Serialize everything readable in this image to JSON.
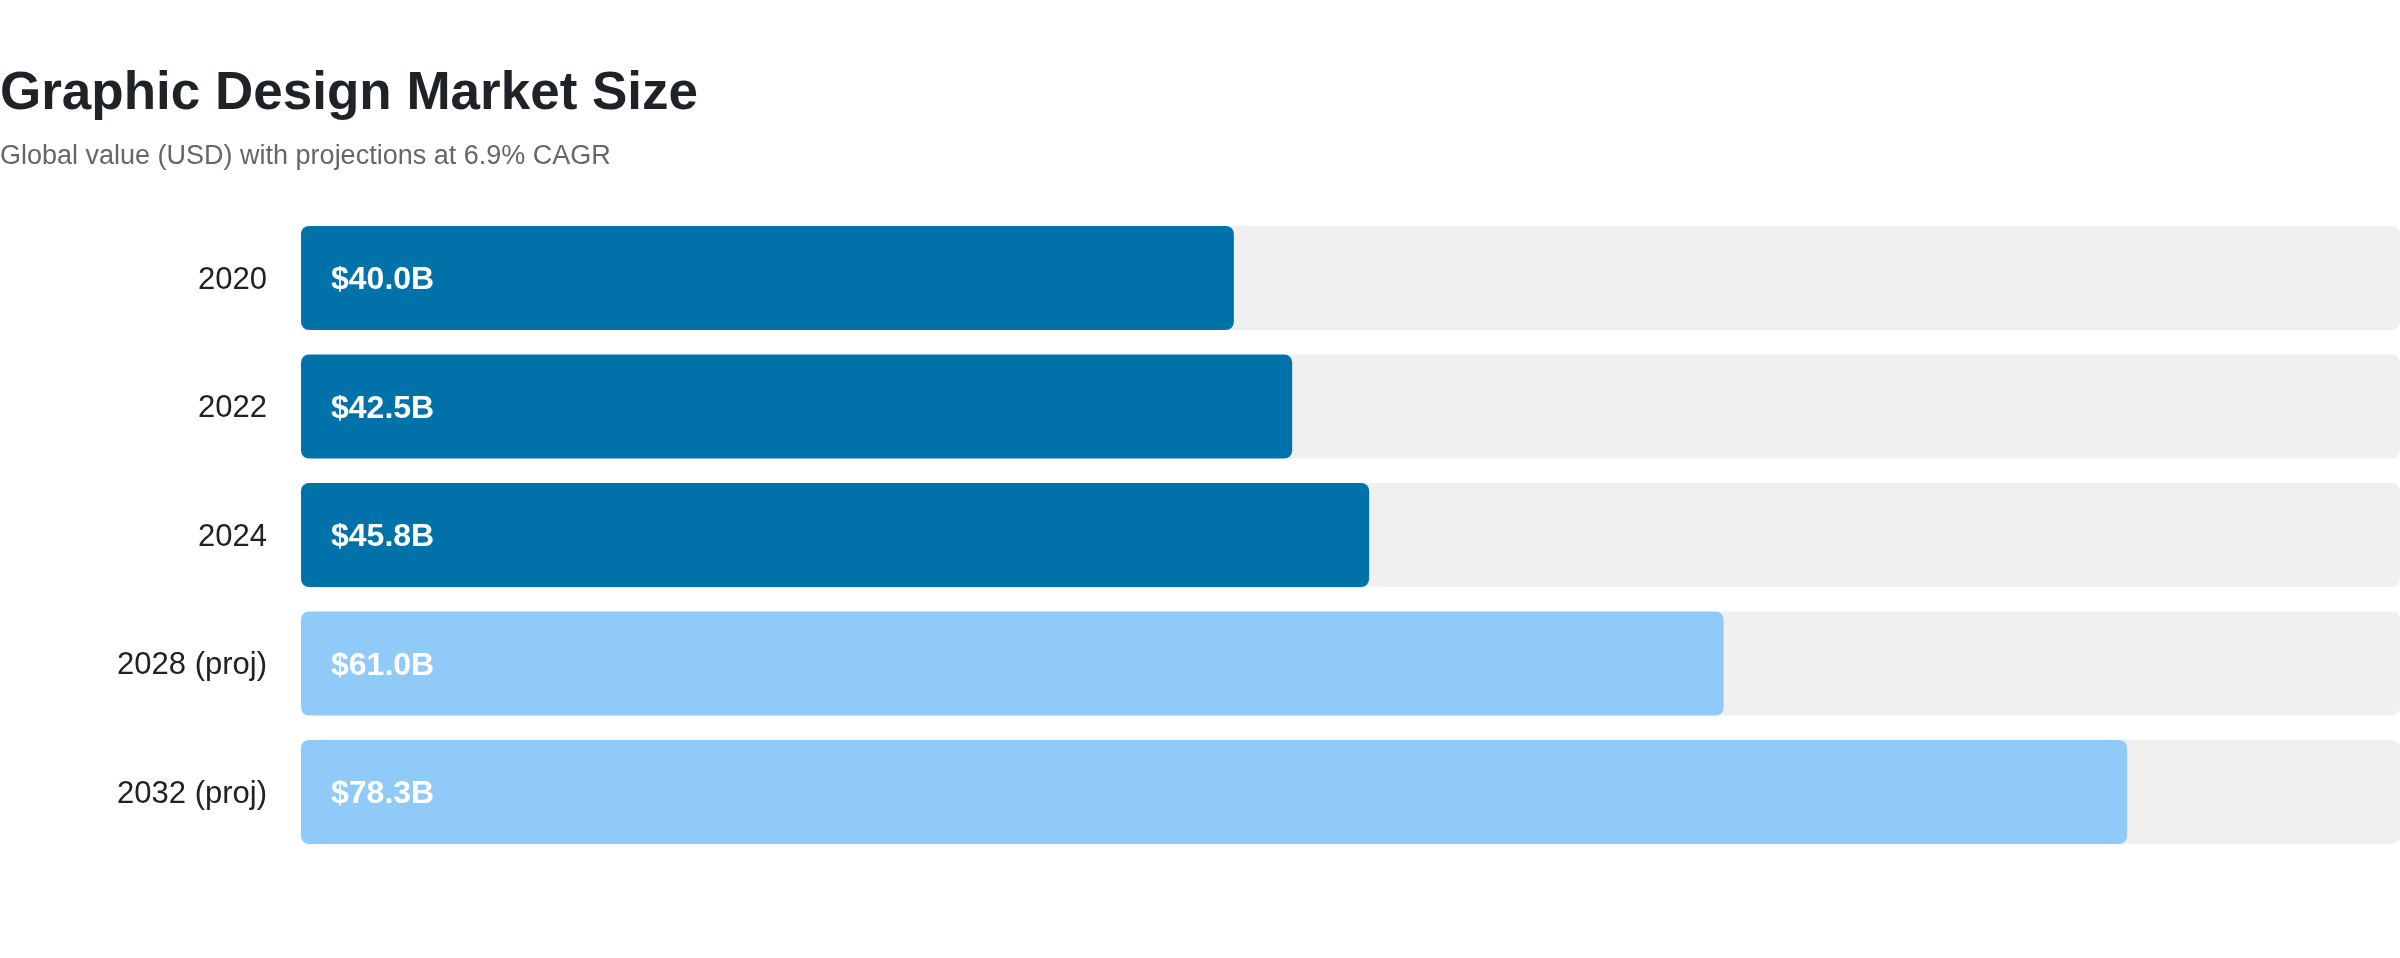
{
  "chart_data": {
    "type": "bar",
    "orientation": "horizontal",
    "title": "Graphic Design Market Size",
    "subtitle": "Global value (USD) with projections at 6.9% CAGR",
    "categories": [
      "2020",
      "2022",
      "2024",
      "2028 (proj)",
      "2032 (proj)"
    ],
    "values": [
      40.0,
      42.5,
      45.8,
      61.0,
      78.3
    ],
    "colors": [
      "#0072aa",
      "#0072aa",
      "#0072aa",
      "#90caf9",
      "#90caf9"
    ],
    "value_labels": [
      "$40.0B",
      "$42.5B",
      "$45.8B",
      "$61.0B",
      "$78.3B"
    ],
    "xlim": [
      0,
      90
    ],
    "tick_labels": "y"
  }
}
